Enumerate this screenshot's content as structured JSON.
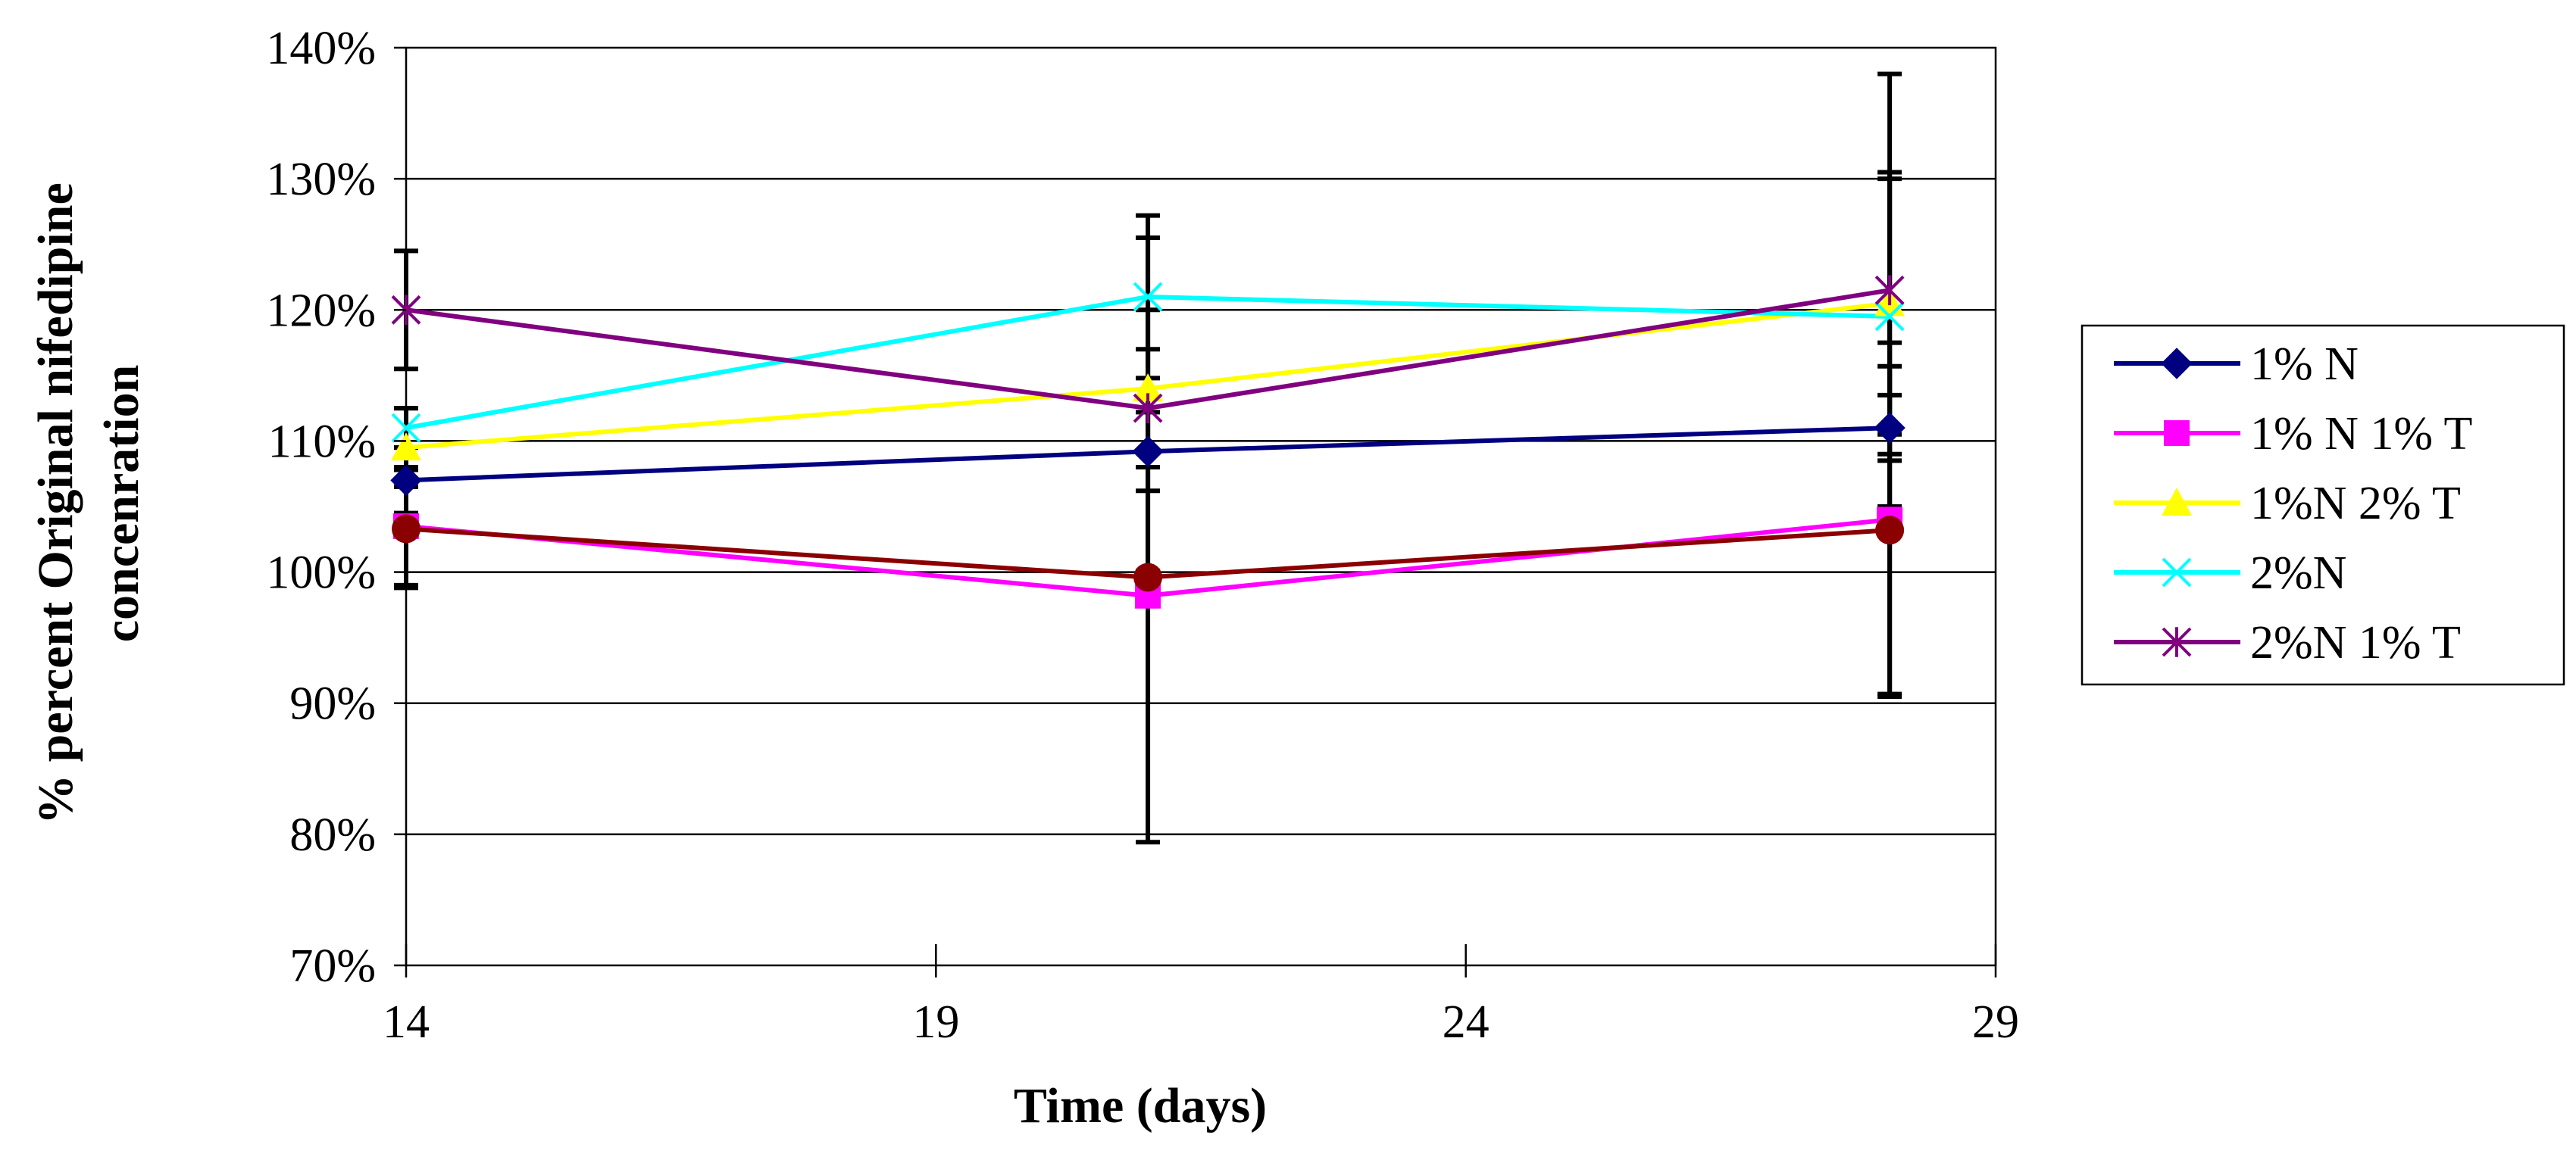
{
  "chart_data": {
    "type": "line",
    "title": "",
    "xlabel": "Time (days)",
    "ylabel_line1": "% percent Original nifedipine",
    "ylabel_line2": "concenration",
    "x_ticks": [
      "14",
      "19",
      "24",
      "29"
    ],
    "y_ticks": [
      "70%",
      "80%",
      "90%",
      "100%",
      "110%",
      "120%",
      "130%",
      "140%"
    ],
    "xlim": [
      14,
      29
    ],
    "ylim": [
      70,
      140
    ],
    "grid": true,
    "legend_position": "right",
    "x": [
      14,
      21,
      28
    ],
    "series": [
      {
        "name": "1% N",
        "color": "#000080",
        "marker": "diamond",
        "values": [
          107,
          109.2,
          111
        ],
        "errors": [
          2.5,
          3.0,
          2.5
        ]
      },
      {
        "name": "1% N 1% T",
        "color": "#FF00FF",
        "marker": "square",
        "values": [
          103.5,
          98.2,
          104
        ],
        "errors": [
          4.5,
          18.8,
          13.5
        ]
      },
      {
        "name": "1%N 2% T",
        "color": "#FFFF00",
        "marker": "triangle",
        "values": [
          109.5,
          114,
          120.5
        ],
        "errors": [
          3.0,
          6.0,
          10.0
        ]
      },
      {
        "name": "2%N",
        "color": "#00FFFF",
        "marker": "x",
        "values": [
          111,
          121,
          119.5
        ],
        "errors": [
          1.5,
          6.2,
          10.5
        ]
      },
      {
        "name": "2%N 1% T",
        "color": "#800080",
        "marker": "star",
        "values": [
          120,
          112.5,
          121.5
        ],
        "errors": [
          4.5,
          13.0,
          16.5
        ]
      },
      {
        "name": "",
        "color": "#8B0000",
        "marker": "circle",
        "values": [
          103.3,
          99.6,
          103.2
        ],
        "errors": [
          4.5,
          0.5,
          12.5
        ]
      }
    ]
  }
}
